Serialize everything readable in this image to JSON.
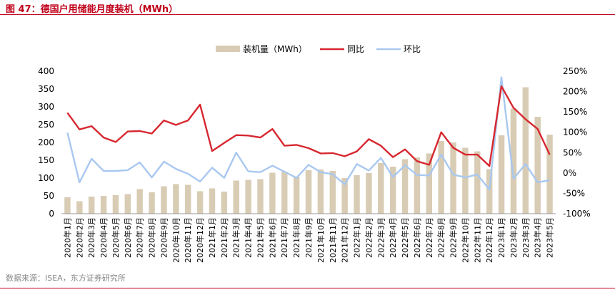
{
  "header": {
    "title": "图 47：德国户用储能月度装机（MWh）"
  },
  "footer": {
    "source": "数据来源：ISEA，东方证券研究所"
  },
  "colors": {
    "accent": "#c0001a",
    "bar": "#d9ccb4",
    "yoy": "#d7272f",
    "mom": "#a9c8f0"
  },
  "chart_data": {
    "type": "bar",
    "categories": [
      "2020年1月",
      "2020年2月",
      "2020年3月",
      "2020年4月",
      "2020年5月",
      "2020年6月",
      "2020年7月",
      "2020年8月",
      "2020年9月",
      "2020年10月",
      "2020年11月",
      "2020年12月",
      "2021年1月",
      "2021年2月",
      "2021年3月",
      "2021年4月",
      "2021年5月",
      "2021年6月",
      "2021年7月",
      "2021年8月",
      "2021年9月",
      "2021年10月",
      "2021年11月",
      "2021年12月",
      "2022年1月",
      "2022年2月",
      "2022年3月",
      "2022年4月",
      "2022年5月",
      "2022年6月",
      "2022年7月",
      "2022年8月",
      "2022年9月",
      "2022年10月",
      "2022年11月",
      "2022年12月",
      "2023年1月",
      "2023年2月",
      "2023年3月",
      "2023年4月",
      "2023年5月"
    ],
    "series": [
      {
        "name": "装机量（MWh）",
        "type": "bar",
        "axis": "left",
        "values": [
          46,
          35,
          48,
          50,
          52,
          55,
          69,
          60,
          77,
          83,
          81,
          63,
          71,
          62,
          93,
          95,
          97,
          115,
          118,
          104,
          122,
          124,
          120,
          100,
          108,
          114,
          142,
          132,
          153,
          158,
          169,
          204,
          200,
          185,
          175,
          125,
          220,
          295,
          355,
          272,
          222
        ]
      },
      {
        "name": "同比",
        "type": "line",
        "axis": "right",
        "values": [
          148,
          107,
          115,
          87,
          76,
          102,
          103,
          97,
          129,
          118,
          129,
          168,
          54,
          74,
          93,
          92,
          87,
          108,
          67,
          69,
          61,
          48,
          49,
          41,
          53,
          83,
          67,
          39,
          58,
          29,
          20,
          100,
          62,
          45,
          45,
          17,
          213,
          160,
          132,
          108,
          45
        ]
      },
      {
        "name": "环比",
        "type": "line",
        "axis": "right",
        "values": [
          99,
          -23,
          35,
          5,
          5,
          7,
          26,
          -11,
          28,
          10,
          -2,
          -21,
          13,
          -12,
          50,
          4,
          2,
          18,
          3,
          -12,
          20,
          2,
          -3,
          -28,
          22,
          6,
          37,
          -10,
          19,
          -5,
          -6,
          45,
          -4,
          -11,
          -4,
          -41,
          235,
          -14,
          22,
          -23,
          -18
        ]
      }
    ],
    "y_left": {
      "ylim": [
        0,
        400
      ],
      "ticks": [
        0,
        50,
        100,
        150,
        200,
        250,
        300,
        350,
        400
      ]
    },
    "y_right": {
      "ylim": [
        -100,
        250
      ],
      "ticks": [
        "-100%",
        "-50%",
        "0%",
        "50%",
        "100%",
        "150%",
        "200%",
        "250%"
      ],
      "tick_values": [
        -100,
        -50,
        0,
        50,
        100,
        150,
        200,
        250
      ]
    },
    "legend": {
      "position": "top-center",
      "entries": [
        "装机量（MWh）",
        "同比",
        "环比"
      ]
    },
    "grid": false
  }
}
